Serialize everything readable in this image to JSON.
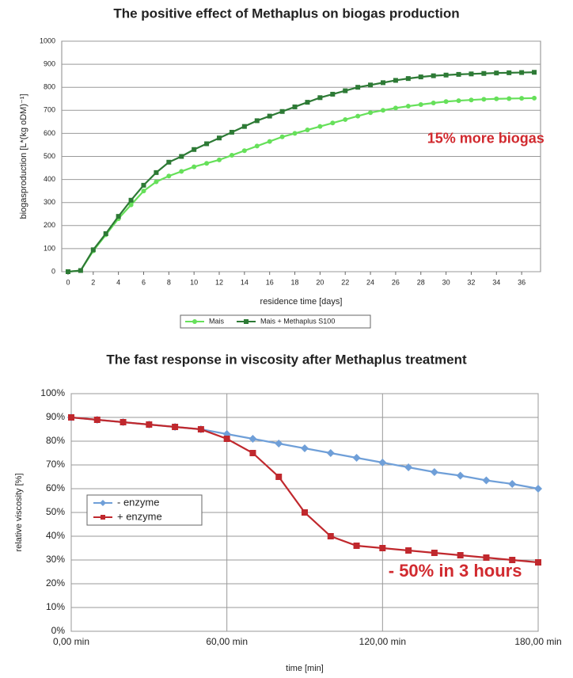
{
  "chart_data": [
    {
      "type": "line",
      "title": "The positive effect of Methaplus on biogas production",
      "x_label": "residence time [days]",
      "y_label": "biogasproduction [L*(kg oDM)⁻¹]",
      "annotation": "15% more biogas",
      "x": [
        0,
        1,
        2,
        3,
        4,
        5,
        6,
        7,
        8,
        9,
        10,
        11,
        12,
        13,
        14,
        15,
        16,
        17,
        18,
        19,
        20,
        21,
        22,
        23,
        24,
        25,
        26,
        27,
        28,
        29,
        30,
        31,
        32,
        33,
        34,
        35,
        36,
        37
      ],
      "series": [
        {
          "name": "Mais",
          "color": "#66e05a",
          "marker": "circle",
          "values": [
            0,
            5,
            90,
            160,
            230,
            290,
            350,
            390,
            415,
            435,
            455,
            470,
            485,
            505,
            525,
            545,
            565,
            585,
            600,
            615,
            630,
            645,
            660,
            675,
            690,
            700,
            710,
            718,
            725,
            732,
            738,
            742,
            745,
            748,
            750,
            751,
            752,
            753
          ]
        },
        {
          "name": "Mais + Methaplus S100",
          "color": "#2d7a35",
          "marker": "square",
          "values": [
            0,
            5,
            95,
            165,
            240,
            310,
            375,
            430,
            475,
            500,
            530,
            555,
            580,
            605,
            630,
            655,
            675,
            695,
            715,
            735,
            755,
            770,
            785,
            800,
            810,
            820,
            830,
            838,
            845,
            850,
            853,
            856,
            858,
            860,
            862,
            863,
            864,
            865
          ]
        }
      ],
      "xlim": [
        -0.5,
        37.5
      ],
      "xticks": [
        0,
        2,
        4,
        6,
        8,
        10,
        12,
        14,
        16,
        18,
        20,
        22,
        24,
        26,
        28,
        30,
        32,
        34,
        36
      ],
      "ylim": [
        0,
        1000
      ],
      "yticks": [
        0,
        100,
        200,
        300,
        400,
        500,
        600,
        700,
        800,
        900,
        1000
      ],
      "grid": true,
      "xgrid": false,
      "legend": "bottom"
    },
    {
      "type": "line",
      "title": "The fast response in viscosity after Methaplus treatment",
      "x_label": "time [min]",
      "y_label": "relative viscosity [%]",
      "annotation": "- 50% in 3 hours",
      "x": [
        0,
        10,
        20,
        30,
        40,
        50,
        60,
        70,
        80,
        90,
        100,
        110,
        120,
        130,
        140,
        150,
        160,
        170,
        180
      ],
      "series": [
        {
          "name": "- enzyme",
          "color": "#6f9fd8",
          "marker": "diamond",
          "values": [
            90,
            89,
            88,
            87,
            86,
            85,
            83,
            81,
            79,
            77,
            75,
            73,
            71,
            69,
            67,
            65.5,
            63.5,
            62,
            60
          ]
        },
        {
          "name": "+ enzyme",
          "color": "#c0282d",
          "marker": "square",
          "values": [
            90,
            89,
            88,
            87,
            86,
            85,
            81,
            75,
            65,
            50,
            40,
            36,
            35,
            34,
            33,
            32,
            31,
            30,
            29
          ]
        }
      ],
      "xlim": [
        0,
        180
      ],
      "xticks": [
        {
          "value": 0,
          "label": "0,00 min"
        },
        {
          "value": 60,
          "label": "60,00 min"
        },
        {
          "value": 120,
          "label": "120,00 min"
        },
        {
          "value": 180,
          "label": "180,00 min"
        }
      ],
      "ylim": [
        0,
        100
      ],
      "yticks": [
        {
          "value": 0,
          "label": "0%"
        },
        {
          "value": 10,
          "label": "10%"
        },
        {
          "value": 20,
          "label": "20%"
        },
        {
          "value": 30,
          "label": "30%"
        },
        {
          "value": 40,
          "label": "40%"
        },
        {
          "value": 50,
          "label": "50%"
        },
        {
          "value": 60,
          "label": "60%"
        },
        {
          "value": 70,
          "label": "70%"
        },
        {
          "value": 80,
          "label": "80%"
        },
        {
          "value": 90,
          "label": "90%"
        },
        {
          "value": 100,
          "label": "100%"
        }
      ],
      "grid": true,
      "xgrid": true,
      "legend": "left"
    }
  ]
}
